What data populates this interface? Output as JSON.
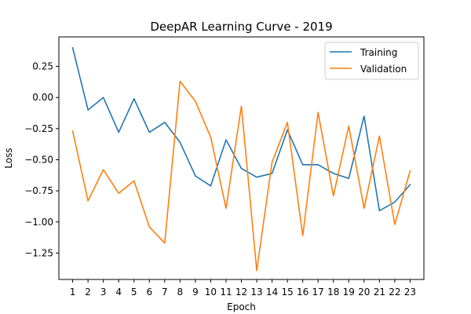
{
  "chart_data": {
    "type": "line",
    "title": "DeepAR Learning Curve - 2019",
    "xlabel": "Epoch",
    "ylabel": "Loss",
    "x": [
      1,
      2,
      3,
      4,
      5,
      6,
      7,
      8,
      9,
      10,
      11,
      12,
      13,
      14,
      15,
      16,
      17,
      18,
      19,
      20,
      21,
      22,
      23
    ],
    "xlim": [
      0.1,
      23.9
    ],
    "ylim": [
      -1.462,
      0.487
    ],
    "yticks": [
      0.25,
      0.0,
      -0.25,
      -0.5,
      -0.75,
      -1.0,
      -1.25
    ],
    "ytick_labels": [
      "0.25",
      "0.00",
      "−0.25",
      "−0.50",
      "−0.75",
      "−1.00",
      "−1.25"
    ],
    "grid": false,
    "legend_position": "top-right",
    "series": [
      {
        "name": "Training",
        "color": "#1f77b4",
        "values": [
          0.4,
          -0.1,
          0.0,
          -0.28,
          -0.01,
          -0.28,
          -0.2,
          -0.36,
          -0.63,
          -0.71,
          -0.34,
          -0.57,
          -0.64,
          -0.61,
          -0.26,
          -0.54,
          -0.54,
          -0.61,
          -0.65,
          -0.15,
          -0.91,
          -0.84,
          -0.7
        ]
      },
      {
        "name": "Validation",
        "color": "#ff7f0e",
        "values": [
          -0.27,
          -0.83,
          -0.58,
          -0.77,
          -0.67,
          -1.04,
          -1.17,
          0.13,
          -0.03,
          -0.32,
          -0.89,
          -0.07,
          -1.39,
          -0.52,
          -0.2,
          -1.11,
          -0.12,
          -0.79,
          -0.23,
          -0.89,
          -0.31,
          -1.02,
          -0.59
        ]
      }
    ]
  }
}
